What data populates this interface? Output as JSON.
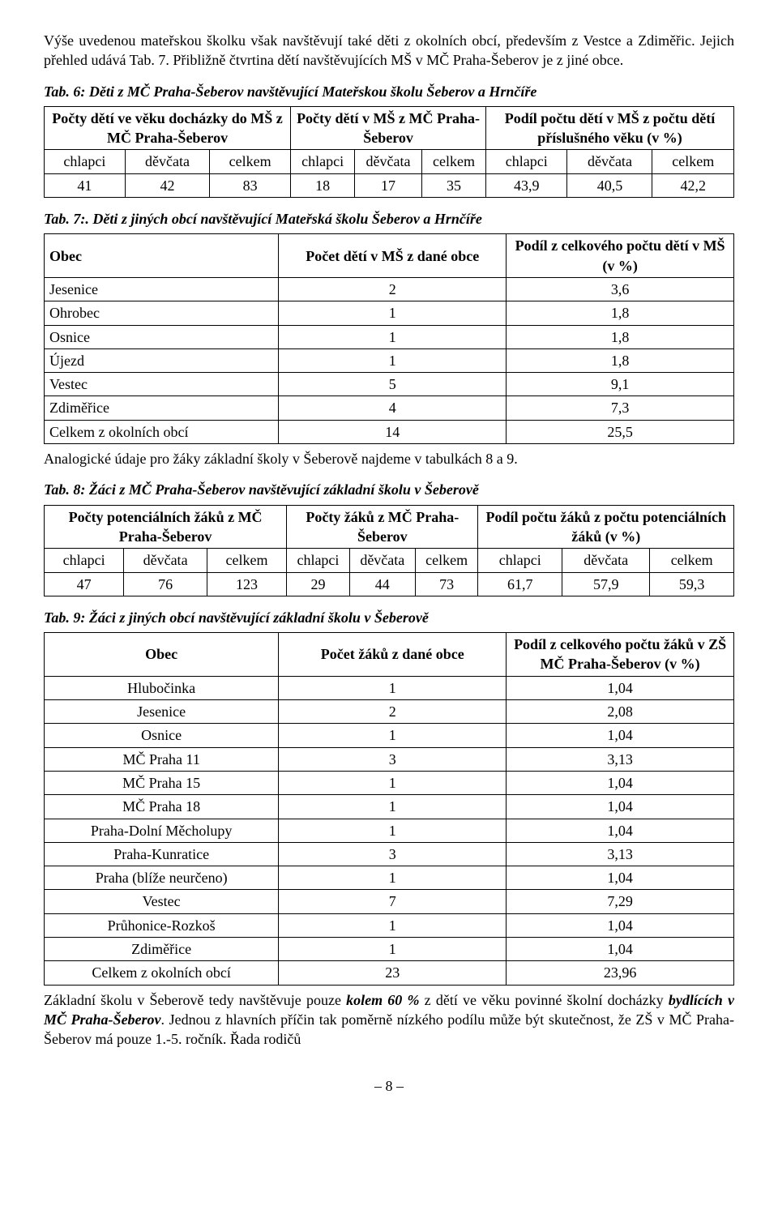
{
  "para1": "Výše uvedenou mateřskou školku však navštěvují také děti z okolních obcí, především z Vestce a Zdiměřic. Jejich přehled udává Tab. 7. Přibližně čtvrtina dětí navštěvujících MŠ v MČ Praha-Šeberov je z jiné obce.",
  "tab6": {
    "caption": "Tab. 6: Děti z MČ Praha-Šeberov navštěvující Mateřskou školu Šeberov a Hrnčíře",
    "head_pot": "Počty dětí ve věku docházky do MŠ z MČ Praha-Šeberov",
    "head_ms": "Počty dětí v MŠ z MČ Praha-Šeberov",
    "head_share": "Podíl počtu dětí v MŠ z počtu dětí příslušného věku (v %)",
    "sub": [
      "chlapci",
      "děvčata",
      "celkem",
      "chlapci",
      "děvčata",
      "celkem",
      "chlapci",
      "děvčata",
      "celkem"
    ],
    "row": [
      "41",
      "42",
      "83",
      "18",
      "17",
      "35",
      "43,9",
      "40,5",
      "42,2"
    ]
  },
  "tab7": {
    "caption": "Tab. 7:. Děti z jiných obcí navštěvující Mateřská školu Šeberov a Hrnčíře",
    "head_obec": "Obec",
    "head_count": "Počet dětí v MŠ z dané obce",
    "head_share": "Podíl z celkového počtu dětí v MŠ (v %)",
    "rows": [
      [
        "Jesenice",
        "2",
        "3,6"
      ],
      [
        "Ohrobec",
        "1",
        "1,8"
      ],
      [
        "Osnice",
        "1",
        "1,8"
      ],
      [
        "Újezd",
        "1",
        "1,8"
      ],
      [
        "Vestec",
        "5",
        "9,1"
      ],
      [
        "Zdiměřice",
        "4",
        "7,3"
      ],
      [
        "Celkem z okolních obcí",
        "14",
        "25,5"
      ]
    ]
  },
  "para2": "Analogické údaje pro žáky základní školy v Šeberově najdeme v tabulkách 8 a 9.",
  "tab8": {
    "caption": "Tab. 8: Žáci z MČ Praha-Šeberov navštěvující základní školu v Šeberově",
    "head_pot": "Počty potenciálních žáků z MČ Praha-Šeberov",
    "head_zs": "Počty žáků z MČ Praha-Šeberov",
    "head_share": "Podíl počtu žáků z počtu potenciálních žáků (v %)",
    "sub": [
      "chlapci",
      "děvčata",
      "celkem",
      "chlapci",
      "děvčata",
      "celkem",
      "chlapci",
      "děvčata",
      "celkem"
    ],
    "row": [
      "47",
      "76",
      "123",
      "29",
      "44",
      "73",
      "61,7",
      "57,9",
      "59,3"
    ]
  },
  "tab9": {
    "caption": "Tab. 9:  Žáci z jiných obcí navštěvující základní školu v Šeberově",
    "head_obec": "Obec",
    "head_count": "Počet žáků z dané obce",
    "head_share": "Podíl z celkového počtu žáků v ZŠ MČ Praha-Šeberov (v %)",
    "rows": [
      [
        "Hlubočinka",
        "1",
        "1,04"
      ],
      [
        "Jesenice",
        "2",
        "2,08"
      ],
      [
        "Osnice",
        "1",
        "1,04"
      ],
      [
        "MČ Praha 11",
        "3",
        "3,13"
      ],
      [
        "MČ Praha 15",
        "1",
        "1,04"
      ],
      [
        "MČ Praha 18",
        "1",
        "1,04"
      ],
      [
        "Praha-Dolní Měcholupy",
        "1",
        "1,04"
      ],
      [
        "Praha-Kunratice",
        "3",
        "3,13"
      ],
      [
        "Praha (blíže neurčeno)",
        "1",
        "1,04"
      ],
      [
        "Vestec",
        "7",
        "7,29"
      ],
      [
        "Průhonice-Rozkoš",
        "1",
        "1,04"
      ],
      [
        "Zdiměřice",
        "1",
        "1,04"
      ],
      [
        "Celkem z okolních obcí",
        "23",
        "23,96"
      ]
    ]
  },
  "para3_pre": "Základní školu v Šeberově tedy navštěvuje pouze ",
  "para3_b1": "kolem 60 %",
  "para3_mid": " z dětí ve věku povinné školní docházky ",
  "para3_b2": "bydlících v MČ Praha-Šeberov",
  "para3_post": ". Jednou z hlavních příčin tak poměrně nízkého podílu může být skutečnost, že ZŠ v MČ Praha-Šeberov má pouze 1.-5. ročník. Řada rodičů",
  "pagenum": "– 8 –"
}
